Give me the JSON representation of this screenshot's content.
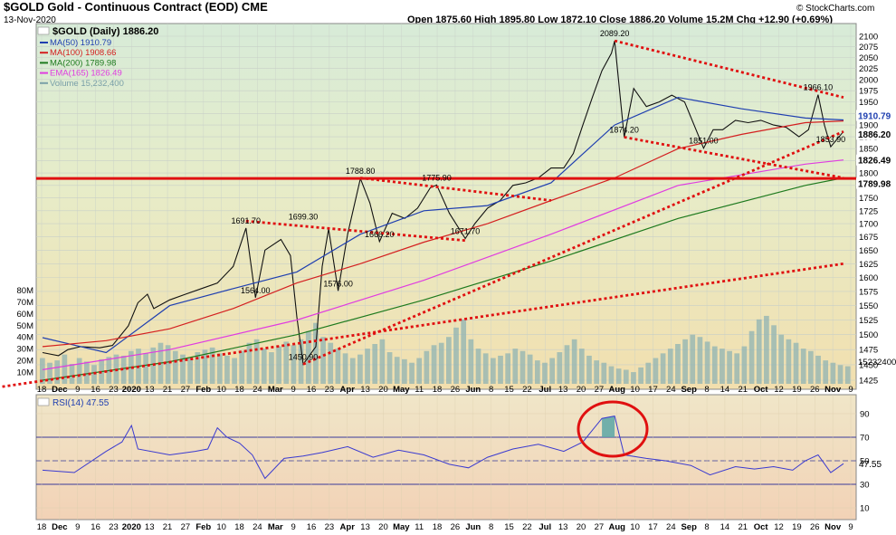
{
  "header": {
    "symbol_line": "$GOLD Gold - Continuous Contract (EOD) CME",
    "date": "13-Nov-2020",
    "ohlc": "Open 1875.60 High 1895.80 Low 1872.10 Close 1886.20 Volume 15.2M Chg +12.90 (+0.69%)",
    "copyright": "© StockCharts.com"
  },
  "legend": {
    "title": "$GOLD (Daily) 1886.20",
    "items": [
      {
        "label": "MA(50) 1910.79",
        "color": "#1f3fb0"
      },
      {
        "label": "MA(100) 1908.66",
        "color": "#d42020"
      },
      {
        "label": "MA(200) 1789.98",
        "color": "#1e7a1e"
      },
      {
        "label": "EMA(165) 1826.49",
        "color": "#e03ce0"
      },
      {
        "label": "Volume 15,232,400",
        "color": "#7aa0a8"
      }
    ]
  },
  "rsi_label": "RSI(14) 47.55",
  "x_labels": [
    "18",
    "Dec",
    "9",
    "16",
    "23",
    "2020",
    "13",
    "21",
    "27",
    "Feb",
    "10",
    "18",
    "24",
    "Mar",
    "9",
    "16",
    "23",
    "Apr",
    "13",
    "20",
    "May",
    "11",
    "18",
    "26",
    "Jun",
    "8",
    "15",
    "22",
    "Jul",
    "13",
    "20",
    "27",
    "Aug",
    "10",
    "17",
    "24",
    "Sep",
    "8",
    "14",
    "21",
    "Oct",
    "12",
    "19",
    "26",
    "Nov",
    "9"
  ],
  "price_ticks": [
    "2100",
    "2075",
    "2050",
    "2025",
    "2000",
    "1975",
    "1950",
    "1925",
    "1900",
    "1875",
    "1850",
    "1825",
    "1800",
    "1775",
    "1750",
    "1725",
    "1700",
    "1675",
    "1650",
    "1625",
    "1600",
    "1575",
    "1550",
    "1525",
    "1500",
    "1475",
    "1450",
    "1425"
  ],
  "volume_ticks": [
    "80M",
    "70M",
    "60M",
    "50M",
    "40M",
    "30M",
    "20M",
    "10M"
  ],
  "rsi_ticks": [
    "90",
    "70",
    "50",
    "30",
    "10"
  ],
  "value_labels": {
    "price": "1886.20",
    "ma50": "1910.79",
    "ema165": "1826.49",
    "ma200": "1789.98",
    "volume": "15232400",
    "rsi": "47.55"
  },
  "annotations": [
    {
      "label": "2089.20",
      "price": 2089.2,
      "date_index": 180
    },
    {
      "label": "1966.10",
      "price": 1966.1,
      "date_index": 244
    },
    {
      "label": "1874.20",
      "price": 1874.2,
      "date_index": 183
    },
    {
      "label": "1851.00",
      "price": 1851.0,
      "date_index": 208
    },
    {
      "label": "1853.90",
      "price": 1853.9,
      "date_index": 248
    },
    {
      "label": "1788.80",
      "price": 1788.8,
      "date_index": 100
    },
    {
      "label": "1775.90",
      "price": 1775.9,
      "date_index": 124
    },
    {
      "label": "1691.70",
      "price": 1691.7,
      "date_index": 64
    },
    {
      "label": "1699.30",
      "price": 1699.3,
      "date_index": 82
    },
    {
      "label": "1666.20",
      "price": 1666.2,
      "date_index": 106
    },
    {
      "label": "1671.70",
      "price": 1671.7,
      "date_index": 133
    },
    {
      "label": "1564.00",
      "price": 1564.0,
      "date_index": 67
    },
    {
      "label": "1576.00",
      "price": 1576.0,
      "date_index": 93
    },
    {
      "label": "1450.90",
      "price": 1450.9,
      "date_index": 82
    }
  ],
  "chart_data": {
    "type": "line",
    "title": "$GOLD (Daily)",
    "x_range": [
      "2019-11-18",
      "2020-11-13"
    ],
    "ylim": [
      1425,
      2110
    ],
    "yscale": "log",
    "volume_ylim": [
      0,
      85000000
    ],
    "rsi_ylim": [
      0,
      100
    ],
    "price_series": [
      {
        "name": "$GOLD (Daily)",
        "points": [
          [
            0,
            1470
          ],
          [
            5,
            1465
          ],
          [
            8,
            1475
          ],
          [
            12,
            1480
          ],
          [
            18,
            1478
          ],
          [
            22,
            1482
          ],
          [
            27,
            1515
          ],
          [
            30,
            1555
          ],
          [
            33,
            1570
          ],
          [
            35,
            1545
          ],
          [
            40,
            1560
          ],
          [
            45,
            1570
          ],
          [
            50,
            1580
          ],
          [
            55,
            1590
          ],
          [
            60,
            1620
          ],
          [
            64,
            1691.7
          ],
          [
            67,
            1564
          ],
          [
            70,
            1650
          ],
          [
            75,
            1670
          ],
          [
            78,
            1640
          ],
          [
            80,
            1530
          ],
          [
            82,
            1450.9
          ],
          [
            86,
            1480
          ],
          [
            88,
            1620
          ],
          [
            90,
            1690
          ],
          [
            93,
            1576
          ],
          [
            96,
            1680
          ],
          [
            100,
            1788.8
          ],
          [
            103,
            1740
          ],
          [
            106,
            1666.2
          ],
          [
            110,
            1720
          ],
          [
            114,
            1710
          ],
          [
            118,
            1730
          ],
          [
            122,
            1770
          ],
          [
            124,
            1775.9
          ],
          [
            128,
            1720
          ],
          [
            133,
            1671.7
          ],
          [
            136,
            1700
          ],
          [
            140,
            1730
          ],
          [
            144,
            1745
          ],
          [
            148,
            1775
          ],
          [
            152,
            1780
          ],
          [
            156,
            1790
          ],
          [
            160,
            1810
          ],
          [
            164,
            1810
          ],
          [
            167,
            1840
          ],
          [
            170,
            1900
          ],
          [
            173,
            1960
          ],
          [
            176,
            2020
          ],
          [
            179,
            2060
          ],
          [
            180,
            2089.2
          ],
          [
            183,
            1874.2
          ],
          [
            186,
            1980
          ],
          [
            190,
            1940
          ],
          [
            194,
            1950
          ],
          [
            198,
            1965
          ],
          [
            202,
            1950
          ],
          [
            205,
            1900
          ],
          [
            208,
            1851
          ],
          [
            211,
            1890
          ],
          [
            214,
            1890
          ],
          [
            218,
            1910
          ],
          [
            222,
            1905
          ],
          [
            226,
            1910
          ],
          [
            230,
            1900
          ],
          [
            234,
            1895
          ],
          [
            238,
            1875
          ],
          [
            241,
            1890
          ],
          [
            244,
            1966.1
          ],
          [
            246,
            1900
          ],
          [
            248,
            1853.9
          ],
          [
            250,
            1870
          ],
          [
            252,
            1886.2
          ]
        ]
      },
      {
        "name": "MA(50)",
        "points": [
          [
            0,
            1495
          ],
          [
            20,
            1470
          ],
          [
            40,
            1550
          ],
          [
            60,
            1580
          ],
          [
            80,
            1610
          ],
          [
            100,
            1680
          ],
          [
            120,
            1725
          ],
          [
            140,
            1735
          ],
          [
            160,
            1780
          ],
          [
            180,
            1900
          ],
          [
            200,
            1960
          ],
          [
            220,
            1935
          ],
          [
            240,
            1915
          ],
          [
            252,
            1910.8
          ]
        ]
      },
      {
        "name": "MA(100)",
        "points": [
          [
            0,
            1480
          ],
          [
            20,
            1490
          ],
          [
            40,
            1510
          ],
          [
            60,
            1545
          ],
          [
            80,
            1590
          ],
          [
            100,
            1625
          ],
          [
            120,
            1665
          ],
          [
            140,
            1700
          ],
          [
            160,
            1745
          ],
          [
            180,
            1790
          ],
          [
            200,
            1850
          ],
          [
            220,
            1880
          ],
          [
            240,
            1905
          ],
          [
            252,
            1908.7
          ]
        ]
      },
      {
        "name": "MA(200)",
        "points": [
          [
            0,
            1425
          ],
          [
            40,
            1455
          ],
          [
            80,
            1500
          ],
          [
            120,
            1560
          ],
          [
            160,
            1630
          ],
          [
            200,
            1710
          ],
          [
            240,
            1775
          ],
          [
            252,
            1790
          ]
        ]
      },
      {
        "name": "EMA(165)",
        "points": [
          [
            0,
            1442
          ],
          [
            40,
            1475
          ],
          [
            80,
            1525
          ],
          [
            120,
            1595
          ],
          [
            160,
            1680
          ],
          [
            200,
            1775
          ],
          [
            240,
            1818
          ],
          [
            252,
            1826.5
          ]
        ]
      }
    ],
    "volume_values_millions": [
      22,
      18,
      20,
      25,
      17,
      22,
      19,
      16,
      21,
      23,
      25,
      24,
      28,
      30,
      26,
      31,
      35,
      33,
      28,
      25,
      22,
      27,
      29,
      31,
      26,
      24,
      22,
      28,
      35,
      38,
      30,
      27,
      32,
      36,
      33,
      38,
      45,
      52,
      40,
      35,
      30,
      26,
      22,
      25,
      30,
      34,
      38,
      27,
      23,
      21,
      18,
      22,
      28,
      33,
      35,
      40,
      48,
      55,
      38,
      30,
      26,
      22,
      24,
      26,
      30,
      28,
      25,
      20,
      18,
      22,
      27,
      33,
      38,
      30,
      24,
      20,
      18,
      15,
      13,
      12,
      10,
      14,
      18,
      22,
      26,
      30,
      34,
      38,
      42,
      40,
      36,
      32,
      30,
      28,
      26,
      32,
      45,
      55,
      58,
      50,
      42,
      38,
      35,
      30,
      28,
      24,
      20,
      18,
      16,
      15
    ],
    "rsi": {
      "points": [
        [
          0,
          42
        ],
        [
          10,
          40
        ],
        [
          20,
          58
        ],
        [
          25,
          66
        ],
        [
          28,
          80
        ],
        [
          30,
          60
        ],
        [
          40,
          55
        ],
        [
          48,
          58
        ],
        [
          52,
          60
        ],
        [
          55,
          78
        ],
        [
          58,
          70
        ],
        [
          62,
          65
        ],
        [
          66,
          55
        ],
        [
          70,
          35
        ],
        [
          76,
          52
        ],
        [
          82,
          54
        ],
        [
          88,
          57
        ],
        [
          96,
          62
        ],
        [
          104,
          53
        ],
        [
          112,
          59
        ],
        [
          120,
          55
        ],
        [
          128,
          47
        ],
        [
          134,
          44
        ],
        [
          140,
          53
        ],
        [
          148,
          60
        ],
        [
          156,
          64
        ],
        [
          164,
          58
        ],
        [
          170,
          66
        ],
        [
          176,
          86
        ],
        [
          180,
          88
        ],
        [
          183,
          55
        ],
        [
          190,
          52
        ],
        [
          196,
          50
        ],
        [
          204,
          46
        ],
        [
          210,
          38
        ],
        [
          218,
          45
        ],
        [
          224,
          43
        ],
        [
          230,
          45
        ],
        [
          236,
          42
        ],
        [
          240,
          50
        ],
        [
          244,
          55
        ],
        [
          248,
          40
        ],
        [
          252,
          47.55
        ]
      ],
      "overbought": 70,
      "oversold": 30,
      "midline": 50
    },
    "lines": [
      {
        "name": "horizontal support",
        "price": 1788.8
      },
      {
        "name": "upper triangle line",
        "from": [
          180,
          2089.2
        ],
        "to": [
          252,
          1960
        ]
      },
      {
        "name": "lower triangle line",
        "from": [
          183,
          1874.2
        ],
        "to": [
          252,
          1790
        ]
      },
      {
        "name": "rising trendline 1",
        "from": [
          82,
          1450.9
        ],
        "to": [
          252,
          1886
        ]
      },
      {
        "name": "rising trendline 2",
        "from": [
          -60,
          1380
        ],
        "to": [
          252,
          1625
        ]
      },
      {
        "name": "flag line 1",
        "from": [
          64,
          1705
        ],
        "to": [
          133,
          1668
        ]
      },
      {
        "name": "flag line 2",
        "from": [
          100,
          1790
        ],
        "to": [
          160,
          1745
        ]
      }
    ]
  }
}
